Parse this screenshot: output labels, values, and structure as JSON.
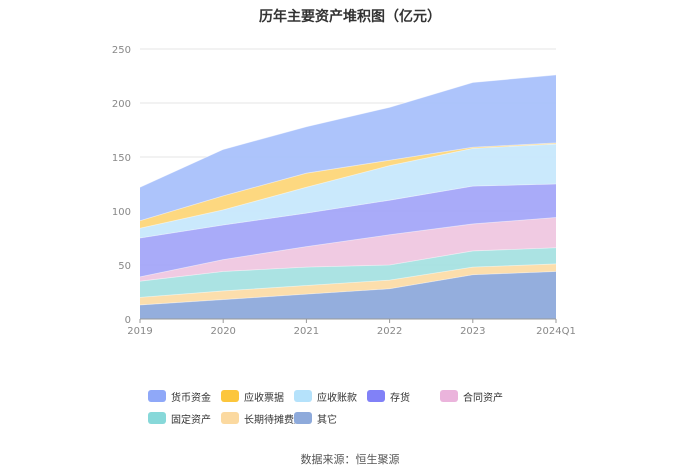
{
  "title": "历年主要资产堆积图（亿元）",
  "source": "数据来源：恒生聚源",
  "chart_data": {
    "type": "area",
    "stacked": true,
    "categories": [
      "2019",
      "2020",
      "2021",
      "2022",
      "2023",
      "2024Q1"
    ],
    "ylim": [
      0,
      250
    ],
    "yticks": [
      0,
      50,
      100,
      150,
      200,
      250
    ],
    "grid": true,
    "legend_position": "bottom",
    "series": [
      {
        "name": "其它",
        "color": "#8eaadb",
        "values": [
          13,
          18,
          23,
          28,
          41,
          44
        ]
      },
      {
        "name": "长期待摊费用",
        "color": "#fcdca8",
        "values": [
          7,
          8,
          8,
          8,
          7,
          7
        ]
      },
      {
        "name": "固定资产",
        "color": "#a7e1e1",
        "values": [
          15,
          18,
          17,
          14,
          15,
          15
        ]
      },
      {
        "name": "合同资产",
        "color": "#efc7e0",
        "values": [
          4,
          11,
          19,
          28,
          25,
          28
        ]
      },
      {
        "name": "存货",
        "color": "#a4a6f9",
        "values": [
          36,
          32,
          31,
          32,
          35,
          31
        ]
      },
      {
        "name": "应收账款",
        "color": "#c7e8fc",
        "values": [
          9,
          14,
          24,
          32,
          35,
          37
        ]
      },
      {
        "name": "应收票据",
        "color": "#fdd679",
        "values": [
          7,
          13,
          13,
          5,
          1,
          1
        ]
      },
      {
        "name": "货币资金",
        "color": "#a9c1fb",
        "values": [
          31,
          43,
          43,
          49,
          60,
          63
        ]
      }
    ]
  },
  "legend_order": [
    "货币资金",
    "应收票据",
    "应收账款",
    "存货",
    "合同资产",
    "固定资产",
    "长期待摊费用",
    "其它"
  ],
  "legend_colors": [
    "#8fa8f8",
    "#fcc63c",
    "#b5e2fb",
    "#8181f7",
    "#ebb4dc",
    "#87d8d9",
    "#fbd9a0",
    "#8eaadb"
  ]
}
